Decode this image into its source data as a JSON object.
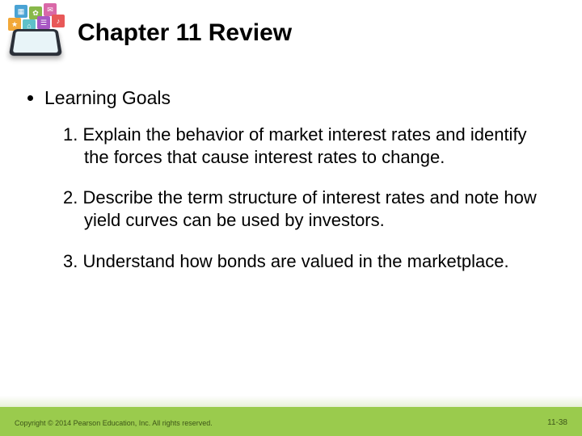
{
  "title": "Chapter 11 Review",
  "section_label": "Learning Goals",
  "goals": [
    {
      "num": "1.",
      "text": "Explain the behavior of market interest rates and identify the forces that cause interest rates to change."
    },
    {
      "num": "2.",
      "text": "Describe the term structure of interest rates and note how yield curves can be used by investors."
    },
    {
      "num": "3.",
      "text": "Understand how bonds are valued in the marketplace."
    }
  ],
  "copyright": "Copyright © 2014 Pearson Education, Inc. All rights reserved.",
  "page_number": "11-38",
  "colors": {
    "footer_bg": "#9acb4d",
    "footer_text": "#3d5518",
    "text": "#000000",
    "bg": "#ffffff"
  },
  "typography": {
    "title_fontsize": 30,
    "title_weight": "bold",
    "section_fontsize": 23,
    "goal_fontsize": 22,
    "footer_fontsize": 9
  },
  "icon_tiles": [
    "#4aa3d4",
    "#88b84a",
    "#d968a8",
    "#f2a838",
    "#5fc1c9",
    "#a858c4",
    "#e85858"
  ]
}
